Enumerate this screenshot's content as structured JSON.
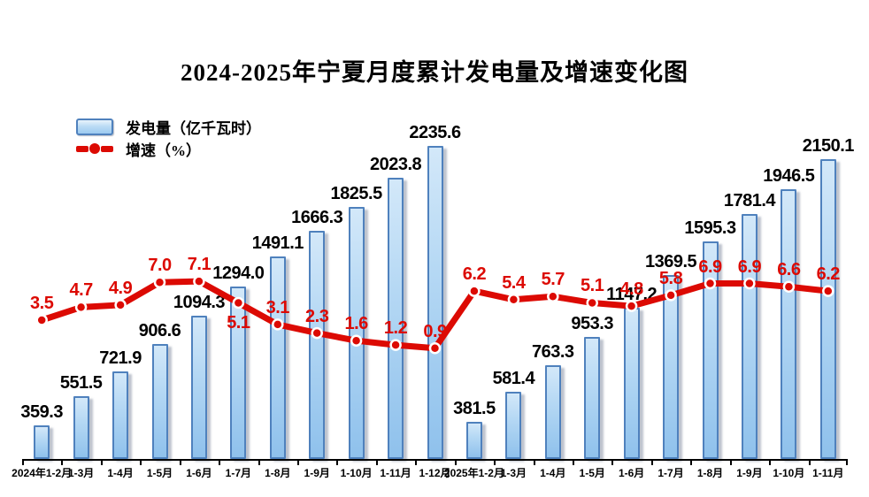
{
  "title": "2024-2025年宁夏月度累计发电量及增速变化图",
  "legend": {
    "bar_label": "发电量（亿千瓦时）",
    "line_label": "增速（%）"
  },
  "chart_data": {
    "type": "bar",
    "combo": "bar+line",
    "title": "2024-2025年宁夏月度累计发电量及增速变化图",
    "categories": [
      "2024年1-2月",
      "1-3月",
      "1-4月",
      "1-5月",
      "1-6月",
      "1-7月",
      "1-8月",
      "1-9月",
      "1-10月",
      "1-11月",
      "1-12月",
      "2025年1-2月",
      "1-3月",
      "1-4月",
      "1-5月",
      "1-6月",
      "1-7月",
      "1-8月",
      "1-9月",
      "1-10月",
      "1-11月"
    ],
    "series": [
      {
        "name": "发电量（亿千瓦时）",
        "type": "bar",
        "values": [
          359.3,
          551.5,
          721.9,
          906.6,
          1094.3,
          1294.0,
          1491.1,
          1666.3,
          1825.5,
          2023.8,
          2235.6,
          381.5,
          581.4,
          763.3,
          953.3,
          1147.2,
          1369.5,
          1595.3,
          1781.4,
          1946.5,
          2150.1
        ],
        "labels": [
          "359.3",
          "551.5",
          "721.9",
          "906.6",
          "1094.3",
          "1294.0",
          "1491.1",
          "1666.3",
          "1825.5",
          "2023.8",
          "2235.6",
          "381.5",
          "581.4",
          "763.3",
          "953.3",
          "1147.2",
          "1369.5",
          "1595.3",
          "1781.4",
          "1946.5",
          "2150.1"
        ]
      },
      {
        "name": "增速（%）",
        "type": "line",
        "values": [
          3.5,
          4.7,
          4.9,
          7.0,
          7.1,
          5.1,
          3.1,
          2.3,
          1.6,
          1.2,
          0.9,
          6.2,
          5.4,
          5.7,
          5.1,
          4.8,
          5.8,
          6.9,
          6.9,
          6.6,
          6.2
        ],
        "labels": [
          "3.5",
          "4.7",
          "4.9",
          "7.0",
          "7.1",
          "5.1",
          "3.1",
          "2.3",
          "1.6",
          "1.2",
          "0.9",
          "6.2",
          "5.4",
          "5.7",
          "5.1",
          "4.8",
          "5.8",
          "6.9",
          "6.9",
          "6.6",
          "6.2"
        ]
      }
    ],
    "colors": {
      "bar_border": "#4f81bd",
      "bar_fill_top": "#d3e8f9",
      "bar_fill_bottom": "#8fc1ec",
      "line": "#dc0a03",
      "bar_value_label": "#000000",
      "line_value_label": "#dc0a03"
    },
    "layout": {
      "legend_position": "top-left",
      "grid": false,
      "y_axis_visible": false,
      "x_axis_visible": true,
      "line_label_below_indices": [
        5
      ]
    }
  }
}
